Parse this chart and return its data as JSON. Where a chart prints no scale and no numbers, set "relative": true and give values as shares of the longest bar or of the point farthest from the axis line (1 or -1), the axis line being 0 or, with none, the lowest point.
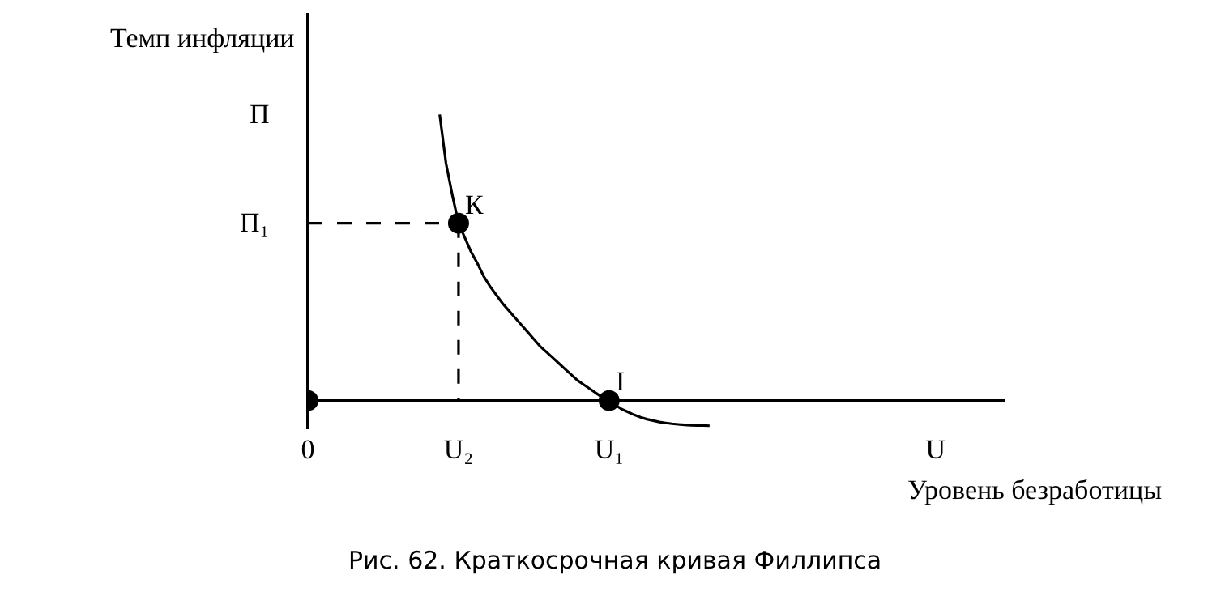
{
  "chart_data": {
    "type": "line",
    "relative": true,
    "xlabel": "Уровень безработицы",
    "ylabel": "Темп инфляции",
    "grid": false,
    "legend": false,
    "categories": [
      "0",
      null,
      null,
      null,
      null,
      null,
      null,
      null,
      null,
      null,
      null,
      null,
      null,
      null,
      null,
      null,
      null,
      null,
      null,
      null,
      null,
      null,
      null,
      null,
      "U₂",
      null,
      null,
      null,
      null,
      null,
      null,
      null,
      null,
      null,
      null,
      null,
      null,
      null,
      null,
      null,
      null,
      null,
      null,
      null,
      null,
      null,
      null,
      null,
      "U₁",
      null,
      null,
      null,
      null,
      null,
      null,
      null,
      null,
      null,
      null,
      null,
      null,
      null,
      null,
      null,
      null,
      null,
      null,
      null,
      null,
      null,
      null,
      null,
      null,
      null,
      null,
      null,
      null,
      null,
      null,
      null,
      null,
      null,
      null,
      null,
      null,
      null,
      null,
      null,
      null,
      null,
      null,
      null,
      null,
      null,
      null,
      null,
      null,
      null,
      null,
      null,
      "U",
      null,
      null,
      null,
      null,
      null,
      null,
      null,
      null,
      null,
      null
    ],
    "series": [
      {
        "color": "#000000",
        "line_style": "solid",
        "marker": "none",
        "values": [
          null,
          null,
          null,
          null,
          null,
          null,
          null,
          null,
          null,
          null,
          null,
          null,
          null,
          null,
          null,
          null,
          null,
          null,
          null,
          null,
          null,
          1,
          0.83,
          0.72,
          0.62,
          0.57,
          0.52,
          0.48,
          0.435,
          0.4,
          0.37,
          0.34,
          0.315,
          0.29,
          0.265,
          0.24,
          0.215,
          0.19,
          0.17,
          0.15,
          0.13,
          0.11,
          0.09,
          0.07,
          0.055,
          0.04,
          0.025,
          0.01,
          0,
          -0.015,
          -0.03,
          -0.04,
          -0.05,
          -0.058,
          -0.065,
          -0.07,
          -0.075,
          -0.078,
          -0.081,
          -0.083,
          -0.085,
          -0.086,
          -0.087,
          -0.087,
          -0.088,
          null,
          null,
          null,
          null,
          null,
          null,
          null,
          null,
          null,
          null,
          null,
          null,
          null,
          null,
          null,
          null,
          null,
          null,
          null,
          null,
          null,
          null,
          null,
          null,
          null,
          null,
          null,
          null,
          null,
          null,
          null,
          null,
          null,
          null,
          null,
          null,
          null,
          null,
          null,
          null,
          null,
          null,
          null,
          null,
          null,
          null
        ]
      },
      {
        "color": "#000000",
        "line_style": "dashed",
        "marker": "none",
        "values": [
          0.62,
          0.62,
          0.62,
          0.62,
          0.62,
          0.62,
          0.62,
          0.62,
          0.62,
          0.62,
          0.62,
          0.62,
          0.62,
          0.62,
          0.62,
          0.62,
          0.62,
          0.62,
          0.62,
          0.62,
          0.62,
          0.62,
          0.62,
          0.62,
          0.62,
          null,
          null,
          null,
          null,
          null,
          null,
          null,
          null,
          null,
          null,
          null,
          null,
          null,
          null,
          null,
          null,
          null,
          null,
          null,
          null,
          null,
          null,
          null,
          null,
          null,
          null,
          null,
          null,
          null,
          null,
          null,
          null,
          null,
          null,
          null,
          null,
          null,
          null,
          null,
          null,
          null,
          null,
          null,
          null,
          null,
          null,
          null,
          null,
          null,
          null,
          null,
          null,
          null,
          null,
          null,
          null,
          null,
          null,
          null,
          null,
          null,
          null,
          null,
          null,
          null,
          null,
          null,
          null,
          null,
          null,
          null,
          null,
          null,
          null,
          null,
          null,
          null,
          null,
          null,
          null,
          null,
          null,
          null,
          null,
          null,
          null
        ]
      },
      {
        "type": "scatter",
        "color": "#000000",
        "marker": "circle",
        "x": [
          "0",
          "U₂",
          "U₁"
        ],
        "values": [
          0,
          0.62,
          0
        ]
      }
    ],
    "annotations": [
      {
        "text": "П₁",
        "x": "0",
        "y": 0.62
      },
      "П",
      {
        "text": "К",
        "x": "U₂",
        "y": 0.62
      },
      {
        "text": "I",
        "x": "U₁",
        "y": 0
      },
      "Рис. 62. Краткосрочная кривая Филлипса"
    ]
  }
}
